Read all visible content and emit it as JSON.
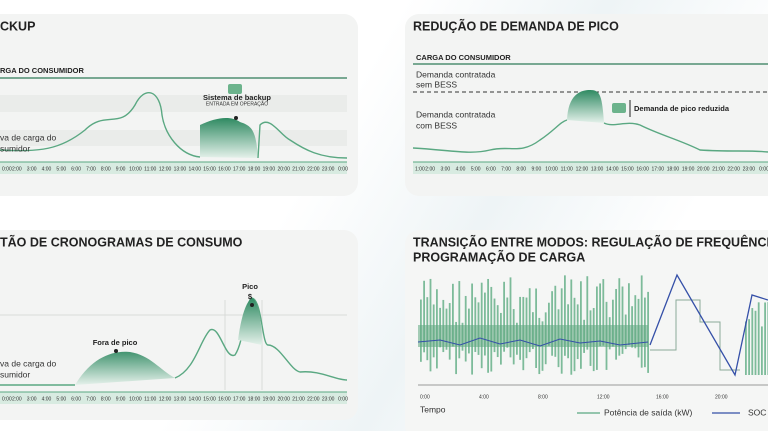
{
  "panels": [
    {
      "title": "CKUP",
      "load_label": "RGA DO CONSUMIDOR",
      "curve_label": [
        "va de carga do",
        "sumidor"
      ],
      "badge": [
        "Sistema de backup",
        "ENTRADA EM OPERAÇÃO"
      ],
      "hours": [
        "0:00",
        "2:00",
        "3:00",
        "4:00",
        "5:00",
        "6:00",
        "7:00",
        "8:00",
        "9:00",
        "10:00",
        "11:00",
        "12:00",
        "13:00",
        "14:00",
        "15:00",
        "16:00",
        "17:00",
        "18:00",
        "19:00",
        "20:00",
        "21:00",
        "22:00",
        "23:00",
        "0:00"
      ]
    },
    {
      "title": "REDUÇÃO DE DEMANDA DE PICO",
      "load_label": "CARGA DO CONSUMIDOR",
      "without": [
        "Demanda contratada",
        "sem BESS"
      ],
      "with": [
        "Demanda contratada",
        "com BESS"
      ],
      "badge": "Demanda de pico reduzida",
      "hours": [
        "1:00",
        "2:00",
        "3:00",
        "4:00",
        "5:00",
        "6:00",
        "7:00",
        "8:00",
        "9:00",
        "10:00",
        "11:00",
        "12:00",
        "13:00",
        "14:00",
        "15:00",
        "16:00",
        "17:00",
        "18:00",
        "19:00",
        "20:00",
        "21:00",
        "22:00",
        "23:00",
        "0:00"
      ]
    },
    {
      "title": "TÃO DE CRONOGRAMAS DE CONSUMO",
      "peak": [
        "Pico",
        "$"
      ],
      "offpeak": "Fora de pico",
      "curve_label": [
        "va de carga do",
        "sumidor"
      ],
      "hours": [
        "0:00",
        "2:00",
        "3:00",
        "4:00",
        "5:00",
        "6:00",
        "7:00",
        "8:00",
        "9:00",
        "10:00",
        "11:00",
        "12:00",
        "13:00",
        "14:00",
        "15:00",
        "16:00",
        "17:00",
        "18:00",
        "19:00",
        "20:00",
        "21:00",
        "22:00",
        "23:00",
        "0:00"
      ]
    },
    {
      "title": [
        "TRANSIÇÃO ENTRE MODOS: REGULAÇÃO DE FREQUÊNCIA E",
        "PROGRAMAÇÃO DE CARGA"
      ],
      "xticks": [
        "0:00",
        "4:00",
        "8:00",
        "12:00",
        "16:00",
        "20:00"
      ],
      "xlabel": "Tempo",
      "legend": [
        "Potência de saída (kW)",
        "SOC"
      ]
    }
  ]
}
